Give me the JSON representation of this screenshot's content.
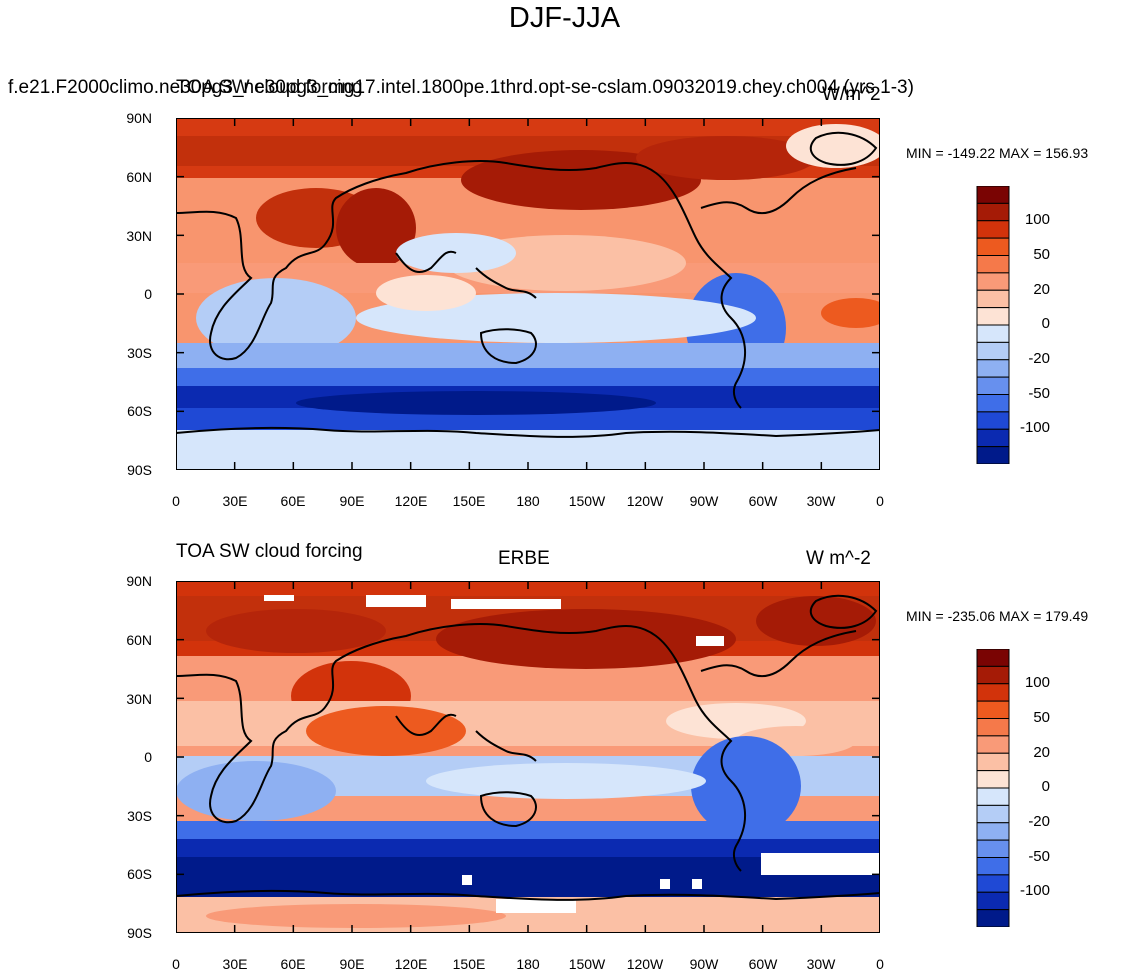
{
  "title": "DJF-JJA",
  "lat_labels": [
    "90N",
    "60N",
    "30N",
    "0",
    "30S",
    "60S",
    "90S"
  ],
  "lon_labels": [
    "0",
    "30E",
    "60E",
    "90E",
    "120E",
    "150E",
    "180",
    "150W",
    "120W",
    "90W",
    "60W",
    "30W",
    "0"
  ],
  "colorbar_labels": [
    "100",
    "50",
    "20",
    "0",
    "-20",
    "-50",
    "-100"
  ],
  "colorbar_colors": [
    "#7a0403",
    "#a51b06",
    "#d2330b",
    "#ed5a1f",
    "#f5794a",
    "#f99a78",
    "#fbc0a5",
    "#fde3d5",
    "#d6e6fb",
    "#b4cdf6",
    "#8eb0f2",
    "#6790ee",
    "#3f6ee8",
    "#1f49d5",
    "#0b2ab1",
    "#001a8a"
  ],
  "panels": [
    {
      "left_string": "f.e21.F2000climo.ne30pg3_ne30pg3_mg17.intel.1800pe.1thrd.opt-se-cslam.09032019.chey.ch004 (yrs 1-3)",
      "overlay_string": "TOA SW cloud forcing",
      "center_string": "",
      "right_string": "W/m^2",
      "stats": "MIN = -149.22 MAX = 156.93",
      "min": -149.22,
      "max": 156.93
    },
    {
      "left_string": "TOA SW cloud forcing",
      "center_string": "ERBE",
      "right_string": "W m^-2",
      "stats": "MIN = -235.06 MAX = 179.49",
      "min": -235.06,
      "max": 179.49
    }
  ]
}
